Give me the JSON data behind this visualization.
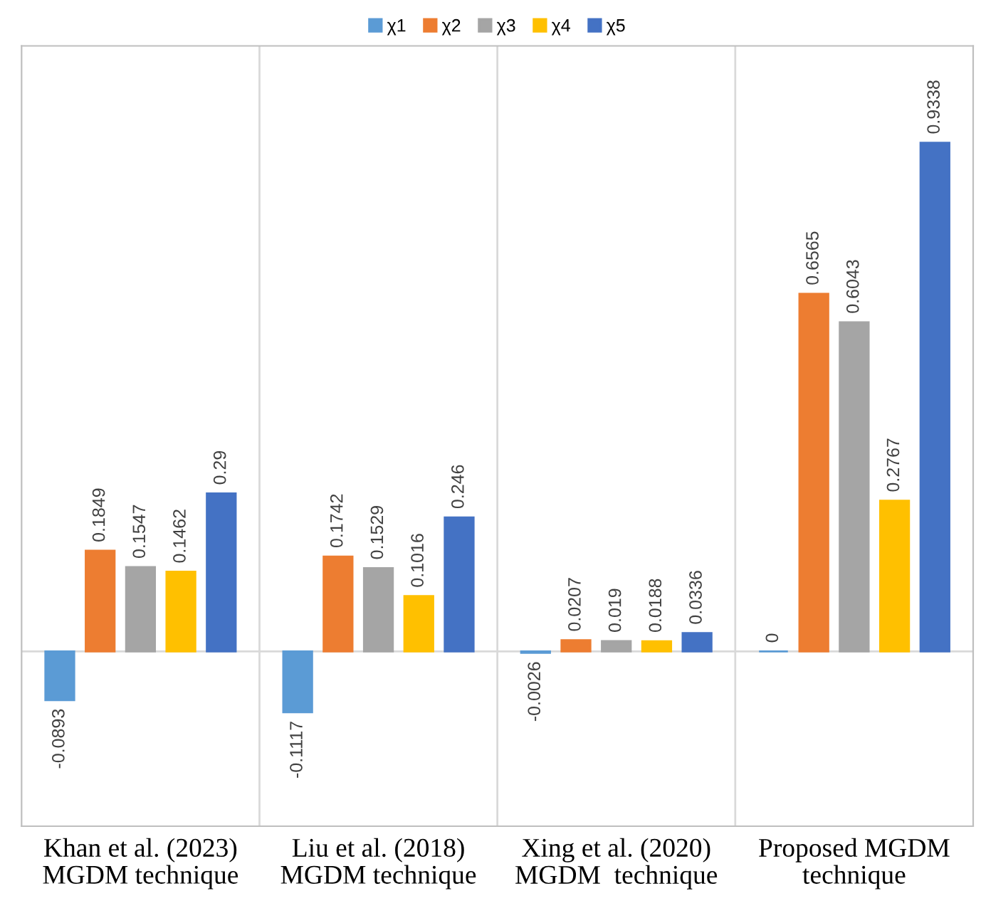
{
  "chart_data": {
    "type": "bar",
    "categories": [
      "Khan et al. (2023)\nMGDM technique",
      "Liu et al. (2018)\nMGDM technique",
      "Xing et al. (2020)\nMGDM  technique",
      "Proposed MGDM\ntechnique"
    ],
    "series": [
      {
        "name": "χ1",
        "color": "#5b9bd5",
        "values": [
          -0.0893,
          -0.1117,
          -0.0026,
          0
        ]
      },
      {
        "name": "χ2",
        "color": "#ed7d31",
        "values": [
          0.1849,
          0.1742,
          0.0207,
          0.6565
        ]
      },
      {
        "name": "χ3",
        "color": "#a5a5a5",
        "values": [
          0.1547,
          0.1529,
          0.019,
          0.6043
        ]
      },
      {
        "name": "χ4",
        "color": "#ffc000",
        "values": [
          0.1462,
          0.1016,
          0.0188,
          0.2767
        ]
      },
      {
        "name": "χ5",
        "color": "#4472c4",
        "values": [
          0.29,
          0.246,
          0.0336,
          0.9338
        ]
      }
    ],
    "data_labels": true,
    "legend": "top",
    "grid": "x"
  }
}
